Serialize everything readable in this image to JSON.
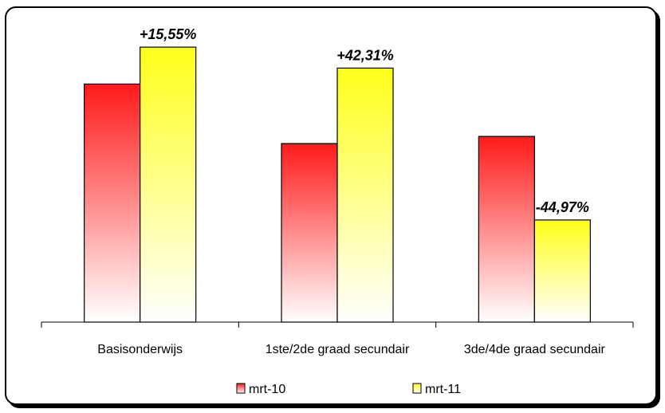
{
  "chart_data": {
    "type": "bar",
    "categories": [
      "Basisonderwijs",
      "1ste/2de graad secundair",
      "3de/4de graad secundair"
    ],
    "series": [
      {
        "name": "mrt-10",
        "values": [
          100,
          75,
          78
        ]
      },
      {
        "name": "mrt-11",
        "values": [
          115.5,
          106.7,
          42.9
        ]
      }
    ],
    "data_labels": [
      "+15,55%",
      "+42,31%",
      "-44,97%"
    ],
    "ylim": [
      0,
      125
    ],
    "grid": false,
    "legend": "bottom",
    "colors": {
      "mrt-10": {
        "top": "#ff1a1a",
        "bottom": "#ffffff"
      },
      "mrt-11": {
        "top": "#ffff1a",
        "bottom": "#ffffff"
      }
    }
  }
}
